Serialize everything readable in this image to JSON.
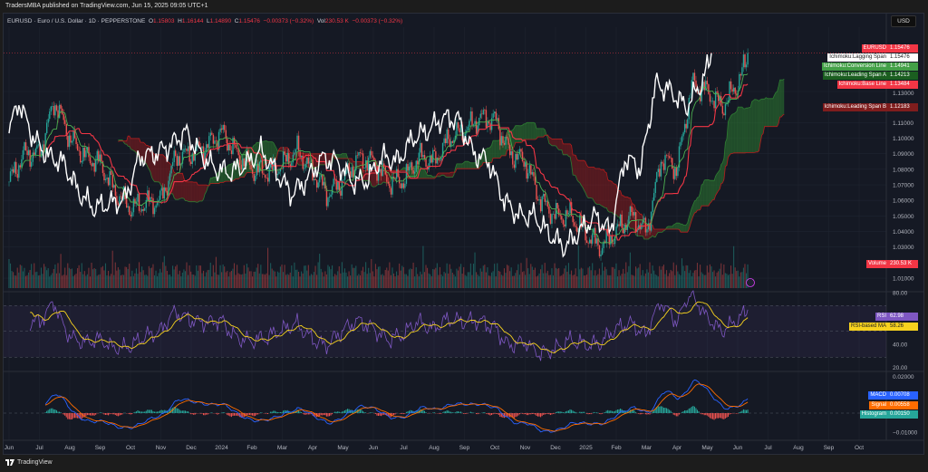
{
  "header": {
    "published": "TradersMBA published on TradingView.com, Jun 15, 2025 09:05 UTC+1"
  },
  "legend": {
    "symbol": "EURUSD · Euro / U.S. Dollar · 1D · PEPPERSTONE",
    "o_label": "O",
    "o": "1.15803",
    "h_label": "H",
    "h": "1.16144",
    "l_label": "L",
    "l": "1.14890",
    "c_label": "C",
    "c": "1.15476",
    "change": "−0.00373 (−0.32%)",
    "vol_label": "Vol",
    "vol": "230.53 K",
    "vol_change": "−0.00373 (−0.32%)"
  },
  "currency": "USD",
  "footer": {
    "brand": "TradingView"
  },
  "colors": {
    "up": "#26a69a",
    "down": "#ef5350",
    "conversion": "#4caf50",
    "base": "#f23645",
    "lagging": "#ffffff",
    "spanA": "#1b5e20",
    "spanB": "#7f1d1d",
    "rsi": "#7e57c2",
    "rsi_ma": "#f7d21e",
    "macd": "#2962ff",
    "signal": "#ff6d00",
    "hist": "#26a69a"
  },
  "price_scale": [
    "1.13000",
    "1.11000",
    "1.10000",
    "1.09000",
    "1.08000",
    "1.07000",
    "1.06000",
    "1.05000",
    "1.04000",
    "1.03000",
    "1.01000"
  ],
  "rsi_scale": [
    "80.00",
    "40.00",
    "20.00"
  ],
  "macd_scale": [
    "0.02000",
    "−0.01000"
  ],
  "tags": [
    {
      "name": "EURUSD",
      "value": "1.15476",
      "bg": "#f23645",
      "fg": "#fff"
    },
    {
      "name": "Ichimoku:Lagging Span",
      "value": "1.15476",
      "bg": "#ffffff",
      "fg": "#222"
    },
    {
      "name": "Ichimoku:Conversion Line",
      "value": "1.14941",
      "bg": "#43a047",
      "fg": "#fff"
    },
    {
      "name": "Ichimoku:Leading Span A",
      "value": "1.14213",
      "bg": "#1b5e20",
      "fg": "#fff"
    },
    {
      "name": "Ichimoku:Base Line",
      "value": "1.13484",
      "bg": "#f23645",
      "fg": "#fff"
    },
    {
      "name": "Ichimoku:Leading Span B",
      "value": "1.12183",
      "bg": "#7f1d1d",
      "fg": "#fff"
    },
    {
      "name": "Volume",
      "value": "230.53 K",
      "bg": "#f23645",
      "fg": "#fff"
    },
    {
      "name": "RSI",
      "value": "62.98",
      "bg": "#7e57c2",
      "fg": "#fff"
    },
    {
      "name": "RSI-based MA",
      "value": "58.26",
      "bg": "#f7d21e",
      "fg": "#222"
    },
    {
      "name": "MACD",
      "value": "0.00708",
      "bg": "#2962ff",
      "fg": "#fff"
    },
    {
      "name": "Signal",
      "value": "0.00558",
      "bg": "#ff6d00",
      "fg": "#fff"
    },
    {
      "name": "Histogram",
      "value": "0.00150",
      "bg": "#26a69a",
      "fg": "#fff"
    }
  ],
  "chart_data": {
    "type": "candlestick",
    "title": "EURUSD · Euro / U.S. Dollar · 1D · PEPPERSTONE",
    "x_ticks": [
      "Jun",
      "Jul",
      "Aug",
      "Sep",
      "Oct",
      "Nov",
      "Dec",
      "2024",
      "Feb",
      "Mar",
      "Apr",
      "May",
      "Jun",
      "Jul",
      "Aug",
      "Sep",
      "Oct",
      "Nov",
      "Dec",
      "2025",
      "Feb",
      "Mar",
      "Apr",
      "May",
      "Jun",
      "Jul",
      "Aug",
      "Sep",
      "Oct"
    ],
    "ylim": [
      1.0,
      1.165
    ],
    "approx_close_by_month": [
      [
        0,
        1.072
      ],
      [
        0.5,
        1.09
      ],
      [
        1,
        1.09
      ],
      [
        1.5,
        1.124
      ],
      [
        2,
        1.1
      ],
      [
        2.5,
        1.088
      ],
      [
        3,
        1.084
      ],
      [
        3.5,
        1.065
      ],
      [
        4,
        1.055
      ],
      [
        4.5,
        1.058
      ],
      [
        5,
        1.06
      ],
      [
        5.5,
        1.088
      ],
      [
        6,
        1.09
      ],
      [
        6.5,
        1.095
      ],
      [
        7,
        1.104
      ],
      [
        7.5,
        1.09
      ],
      [
        8,
        1.08
      ],
      [
        8.5,
        1.078
      ],
      [
        9,
        1.083
      ],
      [
        9.5,
        1.092
      ],
      [
        10,
        1.078
      ],
      [
        10.5,
        1.064
      ],
      [
        11,
        1.073
      ],
      [
        11.5,
        1.087
      ],
      [
        12,
        1.085
      ],
      [
        12.5,
        1.072
      ],
      [
        13,
        1.073
      ],
      [
        13.5,
        1.088
      ],
      [
        14,
        1.085
      ],
      [
        14.5,
        1.1
      ],
      [
        15,
        1.105
      ],
      [
        15.5,
        1.113
      ],
      [
        16,
        1.112
      ],
      [
        16.5,
        1.09
      ],
      [
        17,
        1.085
      ],
      [
        17.5,
        1.06
      ],
      [
        18,
        1.05
      ],
      [
        18.5,
        1.05
      ],
      [
        19,
        1.038
      ],
      [
        19.5,
        1.03
      ],
      [
        20,
        1.04
      ],
      [
        20.5,
        1.05
      ],
      [
        21,
        1.04
      ],
      [
        21.5,
        1.088
      ],
      [
        22,
        1.08
      ],
      [
        22.5,
        1.135
      ],
      [
        23,
        1.13
      ],
      [
        23.5,
        1.12
      ],
      [
        24,
        1.135
      ],
      [
        24.4,
        1.155
      ]
    ],
    "indicators": [
      "Ichimoku Cloud",
      "Volume",
      "RSI 14 with MA",
      "MACD 12 26 9"
    ]
  }
}
